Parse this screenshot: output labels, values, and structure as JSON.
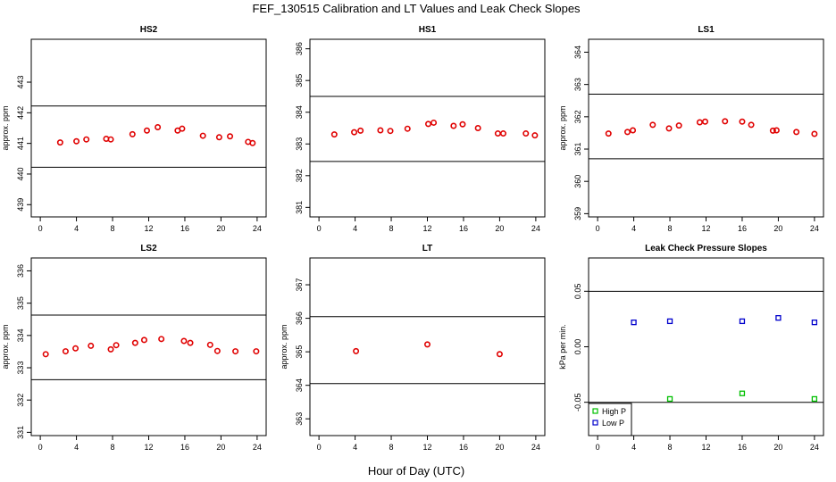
{
  "figure": {
    "title": "FEF_130515  Calibration and LT Values and Leak Check Slopes",
    "xlabel": "Hour of Day (UTC)"
  },
  "colors": {
    "red": "#e00000",
    "green": "#00c000",
    "blue": "#0000cc",
    "line": "#000000"
  },
  "chart_data": [
    {
      "type": "scatter",
      "title": "HS2",
      "ylabel": "approx. ppm",
      "xlim": [
        -1,
        25
      ],
      "ylim": [
        438.6,
        444.4
      ],
      "xticks": [
        0,
        4,
        8,
        12,
        16,
        20,
        24
      ],
      "yticks": [
        439,
        440,
        441,
        442,
        443
      ],
      "hlines": [
        442.22,
        440.22
      ],
      "series": [
        {
          "color": "#e00000",
          "marker": "circle",
          "x": [
            2.2,
            4.0,
            5.1,
            7.3,
            7.8,
            10.2,
            11.8,
            13.0,
            15.2,
            15.7,
            18.0,
            19.8,
            21.0,
            23.0,
            23.5
          ],
          "y": [
            441.03,
            441.07,
            441.13,
            441.15,
            441.13,
            441.3,
            441.42,
            441.53,
            441.42,
            441.48,
            441.25,
            441.2,
            441.23,
            441.05,
            441.01
          ]
        }
      ]
    },
    {
      "type": "scatter",
      "title": "HS1",
      "ylabel": "",
      "xlim": [
        -1,
        25
      ],
      "ylim": [
        380.7,
        386.3
      ],
      "xticks": [
        0,
        4,
        8,
        12,
        16,
        20,
        24
      ],
      "yticks": [
        381,
        382,
        383,
        384,
        385,
        386
      ],
      "hlines": [
        384.5,
        382.45
      ],
      "series": [
        {
          "color": "#e00000",
          "marker": "circle",
          "x": [
            1.7,
            3.9,
            4.6,
            6.8,
            7.9,
            9.8,
            12.1,
            12.7,
            14.9,
            15.9,
            17.6,
            19.8,
            20.4,
            22.9,
            23.9
          ],
          "y": [
            383.3,
            383.37,
            383.42,
            383.43,
            383.41,
            383.48,
            383.63,
            383.67,
            383.57,
            383.62,
            383.5,
            383.33,
            383.33,
            383.33,
            383.27
          ]
        }
      ]
    },
    {
      "type": "scatter",
      "title": "LS1",
      "ylabel": "approx. ppm",
      "xlim": [
        -1,
        25
      ],
      "ylim": [
        358.9,
        364.4
      ],
      "xticks": [
        0,
        4,
        8,
        12,
        16,
        20,
        24
      ],
      "yticks": [
        359,
        360,
        361,
        362,
        363,
        364
      ],
      "hlines": [
        362.7,
        360.7
      ],
      "series": [
        {
          "color": "#e00000",
          "marker": "circle",
          "x": [
            1.2,
            3.3,
            3.9,
            6.1,
            7.9,
            9.0,
            11.3,
            11.9,
            14.1,
            16.0,
            17.0,
            19.4,
            19.8,
            22.0,
            24.0
          ],
          "y": [
            361.48,
            361.53,
            361.58,
            361.75,
            361.64,
            361.73,
            361.83,
            361.85,
            361.86,
            361.85,
            361.75,
            361.57,
            361.58,
            361.53,
            361.47
          ]
        }
      ]
    },
    {
      "type": "scatter",
      "title": "LS2",
      "ylabel": "approx. ppm",
      "xlim": [
        -1,
        25
      ],
      "ylim": [
        330.9,
        336.4
      ],
      "xticks": [
        0,
        4,
        8,
        12,
        16,
        20,
        24
      ],
      "yticks": [
        331,
        332,
        333,
        334,
        335,
        336
      ],
      "hlines": [
        334.63,
        332.63
      ],
      "series": [
        {
          "color": "#e00000",
          "marker": "circle",
          "x": [
            0.6,
            2.8,
            3.9,
            5.6,
            7.8,
            8.4,
            10.5,
            11.5,
            13.4,
            15.9,
            16.6,
            18.8,
            19.6,
            21.6,
            23.9
          ],
          "y": [
            333.42,
            333.51,
            333.6,
            333.68,
            333.57,
            333.7,
            333.77,
            333.86,
            333.89,
            333.83,
            333.77,
            333.71,
            333.52,
            333.51,
            333.51
          ]
        }
      ]
    },
    {
      "type": "scatter",
      "title": "LT",
      "ylabel": "approx. ppm",
      "xlim": [
        -1,
        25
      ],
      "ylim": [
        362.5,
        367.8
      ],
      "xticks": [
        0,
        4,
        8,
        12,
        16,
        20,
        24
      ],
      "yticks": [
        363,
        364,
        365,
        366,
        367
      ],
      "hlines": [
        366.05,
        364.05
      ],
      "series": [
        {
          "color": "#e00000",
          "marker": "circle",
          "x": [
            4.1,
            12.0,
            20.0
          ],
          "y": [
            365.02,
            365.22,
            364.93
          ]
        }
      ]
    },
    {
      "type": "scatter",
      "title": "Leak Check Pressure Slopes",
      "ylabel": "kPa per min.",
      "xlim": [
        -1,
        25
      ],
      "ylim": [
        -0.08,
        0.08
      ],
      "xticks": [
        0,
        4,
        8,
        12,
        16,
        20,
        24
      ],
      "yticks": [
        -0.05,
        0.0,
        0.05
      ],
      "ytick_labels": [
        "-0.05",
        "0.00",
        "0.05"
      ],
      "hlines": [
        0.05,
        -0.05
      ],
      "legend": "bottom-left",
      "series": [
        {
          "name": "High P",
          "color": "#00c000",
          "marker": "square",
          "x": [
            8.0,
            16.0,
            24.0
          ],
          "y": [
            -0.047,
            -0.042,
            -0.047
          ]
        },
        {
          "name": "Low P",
          "color": "#0000cc",
          "marker": "square",
          "x": [
            4.0,
            8.0,
            16.0,
            20.0,
            24.0
          ],
          "y": [
            0.022,
            0.023,
            0.023,
            0.026,
            0.022
          ]
        }
      ]
    }
  ]
}
